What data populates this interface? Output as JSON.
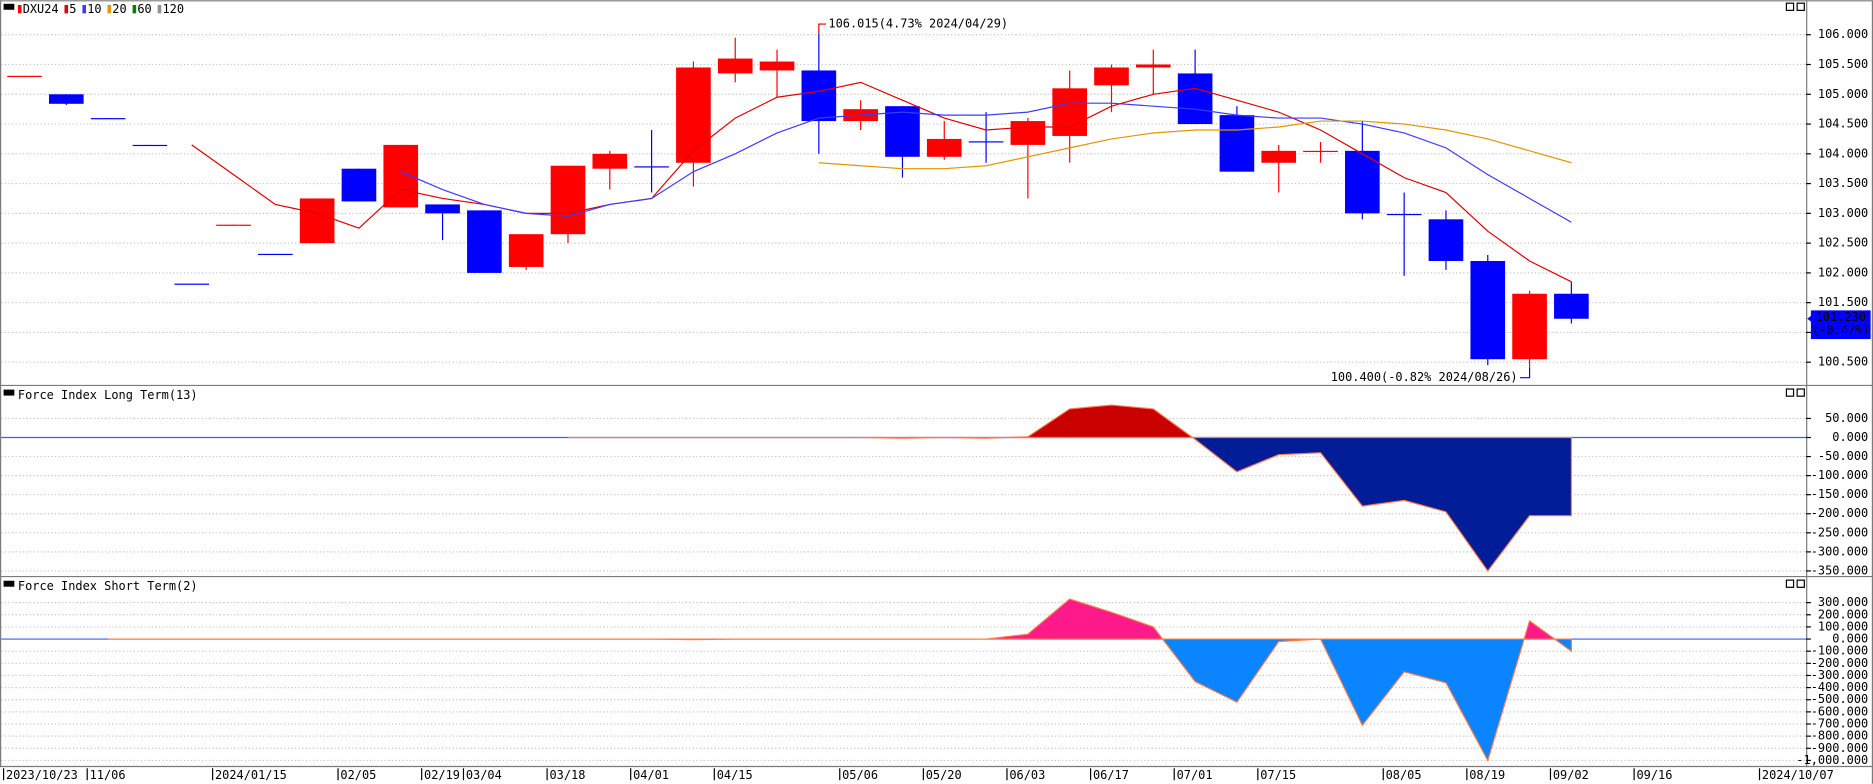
{
  "chart_data": [
    {
      "type": "candlestick",
      "symbol": "DXU24",
      "categories": [
        "2023/10/23",
        null,
        "11/06",
        null,
        null,
        "2024/01/15",
        null,
        null,
        "02/05",
        null,
        "02/19",
        "03/04",
        null,
        "03/18",
        null,
        "04/01",
        null,
        "04/15",
        null,
        null,
        "05/06",
        null,
        "05/20",
        null,
        "06/03",
        null,
        "06/17",
        null,
        "07/01",
        null,
        "07/15",
        null,
        null,
        "08/05",
        null,
        "08/19",
        null,
        "09/02",
        null,
        "09/16",
        null,
        null,
        "2024/10/07"
      ],
      "open": [
        105.3,
        105.0,
        104.6,
        104.15,
        101.82,
        102.8,
        102.32,
        102.5,
        103.75,
        103.1,
        103.15,
        103.05,
        102.1,
        102.65,
        103.75,
        103.79,
        103.85,
        105.35,
        105.4,
        105.4,
        104.55,
        104.8,
        103.95,
        104.21,
        104.15,
        104.3,
        105.15,
        105.45,
        105.35,
        104.65,
        103.85,
        104.04,
        104.05,
        102.99,
        102.9,
        102.2,
        100.55,
        101.65,
        null,
        null,
        null,
        null,
        null
      ],
      "high": [
        105.31,
        105.0,
        104.6,
        104.15,
        101.82,
        102.81,
        102.32,
        103.25,
        103.75,
        104.15,
        103.15,
        103.05,
        102.65,
        103.8,
        104.05,
        104.4,
        105.55,
        105.95,
        105.75,
        106.015,
        104.9,
        104.8,
        104.55,
        104.7,
        104.6,
        105.4,
        105.5,
        105.75,
        105.75,
        104.8,
        104.15,
        104.2,
        104.55,
        103.35,
        103.05,
        102.3,
        101.7,
        101.85,
        null,
        null,
        null,
        null,
        null
      ],
      "low": [
        105.3,
        104.82,
        104.59,
        104.14,
        101.81,
        102.8,
        102.31,
        102.5,
        103.2,
        103.1,
        102.55,
        102.0,
        102.05,
        102.5,
        103.4,
        103.35,
        103.45,
        105.2,
        104.95,
        104.0,
        104.4,
        103.6,
        103.9,
        103.85,
        103.25,
        103.85,
        104.7,
        105.0,
        104.5,
        103.7,
        103.35,
        103.85,
        102.9,
        101.95,
        102.05,
        100.45,
        100.4,
        101.15,
        null,
        null,
        null,
        null,
        null
      ],
      "close": [
        105.31,
        104.84,
        104.59,
        104.14,
        101.81,
        102.81,
        102.31,
        103.25,
        103.2,
        104.15,
        103.0,
        102.0,
        102.65,
        103.8,
        104.0,
        103.78,
        105.45,
        105.6,
        105.55,
        104.55,
        104.75,
        103.95,
        104.25,
        104.2,
        104.55,
        105.1,
        105.45,
        105.5,
        104.5,
        103.7,
        104.05,
        104.05,
        103.0,
        102.98,
        102.2,
        100.55,
        101.65,
        101.23,
        null,
        null,
        null,
        null,
        null
      ],
      "up_color": "#ff0000",
      "down_color": "#0000ff",
      "series": [
        {
          "name": "5",
          "color": "#e00000",
          "values": [
            null,
            null,
            null,
            null,
            104.15,
            103.65,
            103.15,
            103.0,
            102.75,
            103.4,
            103.25,
            103.15,
            103.0,
            103.0,
            103.15,
            103.25,
            104.05,
            104.6,
            104.95,
            105.05,
            105.2,
            104.9,
            104.6,
            104.4,
            104.45,
            104.45,
            104.8,
            105.0,
            105.1,
            104.9,
            104.7,
            104.4,
            104.0,
            103.6,
            103.35,
            102.7,
            102.2,
            101.85,
            null,
            null,
            null,
            null,
            null
          ]
        },
        {
          "name": "10",
          "color": "#3b3bff",
          "values": [
            null,
            null,
            null,
            null,
            null,
            null,
            null,
            null,
            null,
            103.7,
            103.4,
            103.15,
            103.0,
            102.95,
            103.15,
            103.25,
            103.7,
            104.0,
            104.35,
            104.6,
            104.65,
            104.7,
            104.65,
            104.65,
            104.7,
            104.85,
            104.85,
            104.8,
            104.75,
            104.65,
            104.6,
            104.6,
            104.5,
            104.35,
            104.1,
            103.65,
            103.25,
            102.85,
            null,
            null,
            null,
            null,
            null
          ]
        },
        {
          "name": "20",
          "color": "#e69500",
          "values": [
            null,
            null,
            null,
            null,
            null,
            null,
            null,
            null,
            null,
            null,
            null,
            null,
            null,
            null,
            null,
            null,
            null,
            null,
            null,
            103.85,
            103.8,
            103.75,
            103.75,
            103.8,
            103.95,
            104.1,
            104.25,
            104.35,
            104.4,
            104.4,
            104.45,
            104.55,
            104.55,
            104.5,
            104.4,
            104.25,
            104.05,
            103.85,
            null,
            null,
            null,
            null,
            null
          ]
        },
        {
          "name": "60",
          "color": "#008000",
          "values": [
            null,
            null,
            null,
            null,
            null,
            null,
            null,
            null,
            null,
            null,
            null,
            null,
            null,
            null,
            null,
            null,
            null,
            null,
            null,
            null,
            null,
            null,
            null,
            null,
            null,
            null,
            null,
            null,
            null,
            null,
            null,
            null,
            null,
            null,
            null,
            null,
            null,
            null,
            null,
            null,
            null,
            null,
            null
          ]
        },
        {
          "name": "120",
          "color": "#909090",
          "values": [
            null,
            null,
            null,
            null,
            null,
            null,
            null,
            null,
            null,
            null,
            null,
            null,
            null,
            null,
            null,
            null,
            null,
            null,
            null,
            null,
            null,
            null,
            null,
            null,
            null,
            null,
            null,
            null,
            null,
            null,
            null,
            null,
            null,
            null,
            null,
            null,
            null,
            null,
            null,
            null,
            null,
            null,
            null
          ]
        }
      ],
      "ylim": [
        100.12,
        106.58
      ],
      "yticks": [
        {
          "value": 100.5,
          "label": "100.500"
        },
        {
          "value": 101,
          "label": "101.000"
        },
        {
          "value": 101.5,
          "label": "101.500"
        },
        {
          "value": 102,
          "label": "102.000"
        },
        {
          "value": 102.5,
          "label": "102.500"
        },
        {
          "value": 103,
          "label": "103.000"
        },
        {
          "value": 103.5,
          "label": "103.500"
        },
        {
          "value": 104,
          "label": "104.000"
        },
        {
          "value": 104.5,
          "label": "104.500"
        },
        {
          "value": 105,
          "label": "105.000"
        },
        {
          "value": 105.5,
          "label": "105.500"
        },
        {
          "value": 106,
          "label": "106.000"
        }
      ],
      "grid": true,
      "annotations": {
        "high": "106.015(4.73% 2024/04/29)",
        "low": "100.400(-0.82% 2024/08/26)",
        "last_price": "101.230",
        "last_change": "(-0.47%)"
      }
    },
    {
      "type": "area",
      "title": "Force Index Long Term(13)",
      "values": [
        null,
        null,
        null,
        null,
        null,
        null,
        null,
        null,
        null,
        null,
        null,
        null,
        null,
        0,
        0,
        0,
        0,
        0,
        0,
        0,
        0,
        -2,
        0,
        -2,
        2,
        75,
        85,
        75,
        -5,
        -90,
        -45,
        -40,
        -180,
        -165,
        -195,
        -350,
        -205,
        -205,
        null,
        null,
        null,
        null,
        null
      ],
      "pos_color": "#c80000",
      "neg_color": "#001c96",
      "line_color": "#ff7a45",
      "ylim": [
        -360,
        135
      ],
      "yticks": [
        {
          "value": 50,
          "label": "50.000"
        },
        {
          "value": 0,
          "label": "0.000"
        },
        {
          "value": -50,
          "label": "-50.000"
        },
        {
          "value": -100,
          "label": "-100.000"
        },
        {
          "value": -150,
          "label": "-150.000"
        },
        {
          "value": -200,
          "label": "-200.000"
        },
        {
          "value": -250,
          "label": "-250.000"
        },
        {
          "value": -300,
          "label": "-300.000"
        },
        {
          "value": -350,
          "label": "-350.000"
        }
      ],
      "grid": true
    },
    {
      "type": "area",
      "title": "Force Index Short Term(2)",
      "values": [
        null,
        null,
        0,
        0,
        0,
        0,
        0,
        0,
        0,
        0,
        0,
        0,
        0,
        0,
        0,
        0,
        -5,
        0,
        0,
        0,
        0,
        0,
        0,
        0,
        40,
        330,
        220,
        100,
        -350,
        -520,
        -20,
        0,
        -710,
        -270,
        -360,
        -1000,
        150,
        -100,
        null,
        null,
        null,
        null,
        null
      ],
      "pos_color": "#ff1a8c",
      "neg_color": "#0a84ff",
      "line_color": "#ff7a45",
      "ylim": [
        -1045,
        510
      ],
      "yticks": [
        {
          "value": 300,
          "label": "300.000"
        },
        {
          "value": 200,
          "label": "200.000"
        },
        {
          "value": 100,
          "label": "100.000"
        },
        {
          "value": 0,
          "label": "0.000"
        },
        {
          "value": -100,
          "label": "-100.000"
        },
        {
          "value": -200,
          "label": "-200.000"
        },
        {
          "value": -300,
          "label": "-300.000"
        },
        {
          "value": -400,
          "label": "-400.000"
        },
        {
          "value": -500,
          "label": "-500.000"
        },
        {
          "value": -600,
          "label": "-600.000"
        },
        {
          "value": -700,
          "label": "-700.000"
        },
        {
          "value": -800,
          "label": "-800.000"
        },
        {
          "value": -900,
          "label": "-900.000"
        },
        {
          "value": -1000,
          "label": "-1,000.000"
        }
      ],
      "grid": true
    }
  ]
}
